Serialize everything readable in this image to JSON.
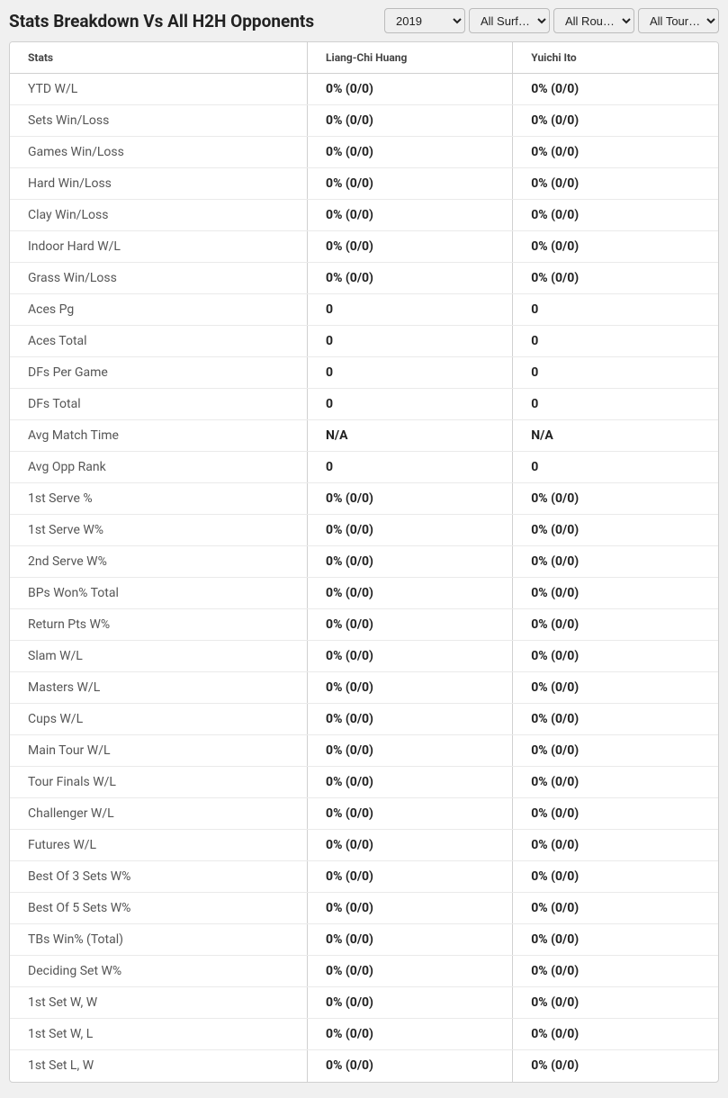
{
  "header": {
    "title": "Stats Breakdown Vs All H2H Opponents",
    "filters": {
      "year": "2019",
      "surface": "All Surf…",
      "round": "All Rou…",
      "tour": "All Tour…"
    }
  },
  "table": {
    "columns": {
      "stats": "Stats",
      "player1": "Liang-Chi Huang",
      "player2": "Yuichi Ito"
    },
    "rows": [
      {
        "label": "YTD W/L",
        "p1": "0% (0/0)",
        "p2": "0% (0/0)"
      },
      {
        "label": "Sets Win/Loss",
        "p1": "0% (0/0)",
        "p2": "0% (0/0)"
      },
      {
        "label": "Games Win/Loss",
        "p1": "0% (0/0)",
        "p2": "0% (0/0)"
      },
      {
        "label": "Hard Win/Loss",
        "p1": "0% (0/0)",
        "p2": "0% (0/0)"
      },
      {
        "label": "Clay Win/Loss",
        "p1": "0% (0/0)",
        "p2": "0% (0/0)"
      },
      {
        "label": "Indoor Hard W/L",
        "p1": "0% (0/0)",
        "p2": "0% (0/0)"
      },
      {
        "label": "Grass Win/Loss",
        "p1": "0% (0/0)",
        "p2": "0% (0/0)"
      },
      {
        "label": "Aces Pg",
        "p1": "0",
        "p2": "0"
      },
      {
        "label": "Aces Total",
        "p1": "0",
        "p2": "0"
      },
      {
        "label": "DFs Per Game",
        "p1": "0",
        "p2": "0"
      },
      {
        "label": "DFs Total",
        "p1": "0",
        "p2": "0"
      },
      {
        "label": "Avg Match Time",
        "p1": "N/A",
        "p2": "N/A"
      },
      {
        "label": "Avg Opp Rank",
        "p1": "0",
        "p2": "0"
      },
      {
        "label": "1st Serve %",
        "p1": "0% (0/0)",
        "p2": "0% (0/0)"
      },
      {
        "label": "1st Serve W%",
        "p1": "0% (0/0)",
        "p2": "0% (0/0)"
      },
      {
        "label": "2nd Serve W%",
        "p1": "0% (0/0)",
        "p2": "0% (0/0)"
      },
      {
        "label": "BPs Won% Total",
        "p1": "0% (0/0)",
        "p2": "0% (0/0)"
      },
      {
        "label": "Return Pts W%",
        "p1": "0% (0/0)",
        "p2": "0% (0/0)"
      },
      {
        "label": "Slam W/L",
        "p1": "0% (0/0)",
        "p2": "0% (0/0)"
      },
      {
        "label": "Masters W/L",
        "p1": "0% (0/0)",
        "p2": "0% (0/0)"
      },
      {
        "label": "Cups W/L",
        "p1": "0% (0/0)",
        "p2": "0% (0/0)"
      },
      {
        "label": "Main Tour W/L",
        "p1": "0% (0/0)",
        "p2": "0% (0/0)"
      },
      {
        "label": "Tour Finals W/L",
        "p1": "0% (0/0)",
        "p2": "0% (0/0)"
      },
      {
        "label": "Challenger W/L",
        "p1": "0% (0/0)",
        "p2": "0% (0/0)"
      },
      {
        "label": "Futures W/L",
        "p1": "0% (0/0)",
        "p2": "0% (0/0)"
      },
      {
        "label": "Best Of 3 Sets W%",
        "p1": "0% (0/0)",
        "p2": "0% (0/0)"
      },
      {
        "label": "Best Of 5 Sets W%",
        "p1": "0% (0/0)",
        "p2": "0% (0/0)"
      },
      {
        "label": "TBs Win% (Total)",
        "p1": "0% (0/0)",
        "p2": "0% (0/0)"
      },
      {
        "label": "Deciding Set W%",
        "p1": "0% (0/0)",
        "p2": "0% (0/0)"
      },
      {
        "label": "1st Set W, W",
        "p1": "0% (0/0)",
        "p2": "0% (0/0)"
      },
      {
        "label": "1st Set W, L",
        "p1": "0% (0/0)",
        "p2": "0% (0/0)"
      },
      {
        "label": "1st Set L, W",
        "p1": "0% (0/0)",
        "p2": "0% (0/0)"
      }
    ]
  },
  "style": {
    "header_bg": "#f0f0f0",
    "border_color": "#d0d0d0",
    "row_border": "#eaeaea",
    "label_color": "#555555",
    "value_color": "#222222",
    "title_fontsize": 19,
    "header_fontsize": 12,
    "cell_fontsize": 14
  }
}
